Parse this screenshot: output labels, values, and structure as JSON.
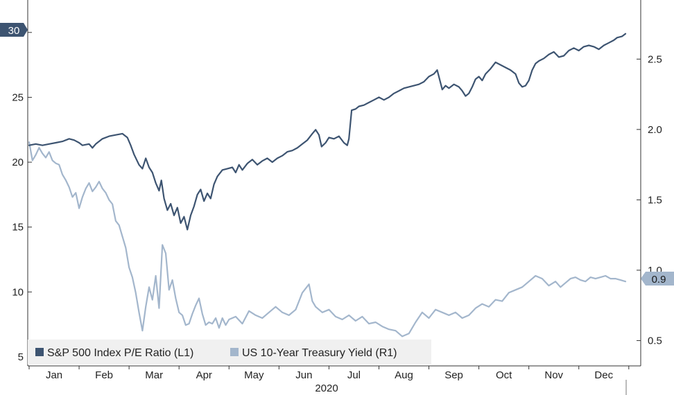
{
  "chart_data": {
    "type": "line",
    "xlabel": "2020",
    "months": [
      "Jan",
      "Feb",
      "Mar",
      "Apr",
      "May",
      "Jun",
      "Jul",
      "Aug",
      "Sep",
      "Oct",
      "Nov",
      "Dec"
    ],
    "left_axis": {
      "ticks": [
        5,
        10,
        15,
        20,
        25,
        30
      ],
      "range": [
        4.3,
        32.5
      ]
    },
    "right_axis": {
      "ticks": [
        0.5,
        1.0,
        1.5,
        2.0,
        2.5
      ],
      "tick_labels": [
        "0.5",
        "1.0",
        "1.5",
        "2.0",
        "2.5"
      ],
      "range": [
        0.32,
        2.92
      ]
    },
    "legend_position": "bottom-left",
    "grid": false,
    "series": [
      {
        "name": "S&P 500 Index P/E Ratio (L1)",
        "axis": "left",
        "color": "#3d5471",
        "last_value_label": "30",
        "points": [
          [
            0.0,
            21.3
          ],
          [
            0.2,
            21.4
          ],
          [
            0.4,
            21.3
          ],
          [
            0.6,
            21.4
          ],
          [
            0.8,
            21.5
          ],
          [
            1.0,
            21.6
          ],
          [
            1.2,
            21.8
          ],
          [
            1.35,
            21.7
          ],
          [
            1.5,
            21.5
          ],
          [
            1.6,
            21.3
          ],
          [
            1.8,
            21.4
          ],
          [
            1.9,
            21.1
          ],
          [
            2.0,
            21.4
          ],
          [
            2.2,
            21.8
          ],
          [
            2.4,
            22.0
          ],
          [
            2.6,
            22.1
          ],
          [
            2.8,
            22.2
          ],
          [
            2.95,
            21.9
          ],
          [
            3.05,
            21.3
          ],
          [
            3.15,
            20.6
          ],
          [
            3.3,
            19.8
          ],
          [
            3.4,
            19.5
          ],
          [
            3.5,
            20.3
          ],
          [
            3.6,
            19.6
          ],
          [
            3.7,
            19.2
          ],
          [
            3.8,
            18.4
          ],
          [
            3.9,
            17.8
          ],
          [
            3.97,
            18.6
          ],
          [
            4.05,
            17.2
          ],
          [
            4.15,
            16.3
          ],
          [
            4.25,
            16.8
          ],
          [
            4.35,
            15.9
          ],
          [
            4.45,
            16.5
          ],
          [
            4.55,
            15.3
          ],
          [
            4.65,
            15.8
          ],
          [
            4.75,
            14.8
          ],
          [
            4.85,
            15.9
          ],
          [
            4.95,
            16.6
          ],
          [
            5.05,
            17.5
          ],
          [
            5.15,
            17.9
          ],
          [
            5.25,
            17.0
          ],
          [
            5.35,
            17.6
          ],
          [
            5.45,
            17.2
          ],
          [
            5.55,
            18.3
          ],
          [
            5.65,
            18.9
          ],
          [
            5.8,
            19.4
          ],
          [
            5.95,
            19.5
          ],
          [
            6.1,
            19.6
          ],
          [
            6.2,
            19.2
          ],
          [
            6.3,
            19.8
          ],
          [
            6.4,
            19.4
          ],
          [
            6.55,
            19.9
          ],
          [
            6.7,
            20.2
          ],
          [
            6.85,
            19.8
          ],
          [
            7.0,
            20.1
          ],
          [
            7.15,
            20.3
          ],
          [
            7.3,
            20.0
          ],
          [
            7.45,
            20.3
          ],
          [
            7.6,
            20.5
          ],
          [
            7.75,
            20.8
          ],
          [
            7.9,
            20.9
          ],
          [
            8.05,
            21.1
          ],
          [
            8.2,
            21.4
          ],
          [
            8.35,
            21.7
          ],
          [
            8.5,
            22.2
          ],
          [
            8.6,
            22.5
          ],
          [
            8.7,
            22.1
          ],
          [
            8.78,
            21.2
          ],
          [
            8.9,
            21.5
          ],
          [
            9.0,
            21.9
          ],
          [
            9.15,
            21.8
          ],
          [
            9.3,
            22.0
          ],
          [
            9.45,
            21.5
          ],
          [
            9.55,
            21.3
          ],
          [
            9.6,
            21.8
          ],
          [
            9.68,
            24.0
          ],
          [
            9.8,
            24.1
          ],
          [
            9.9,
            24.3
          ],
          [
            10.05,
            24.4
          ],
          [
            10.2,
            24.6
          ],
          [
            10.35,
            24.8
          ],
          [
            10.5,
            25.0
          ],
          [
            10.65,
            24.8
          ],
          [
            10.8,
            25.0
          ],
          [
            10.95,
            25.3
          ],
          [
            11.1,
            25.5
          ],
          [
            11.25,
            25.7
          ],
          [
            11.4,
            25.8
          ],
          [
            11.55,
            25.9
          ],
          [
            11.7,
            26.0
          ],
          [
            11.85,
            26.2
          ],
          [
            12.0,
            26.6
          ],
          [
            12.15,
            26.8
          ],
          [
            12.25,
            27.1
          ],
          [
            12.32,
            26.4
          ],
          [
            12.4,
            25.6
          ],
          [
            12.5,
            25.9
          ],
          [
            12.6,
            25.7
          ],
          [
            12.75,
            26.0
          ],
          [
            12.9,
            25.8
          ],
          [
            13.0,
            25.5
          ],
          [
            13.1,
            25.1
          ],
          [
            13.2,
            25.3
          ],
          [
            13.3,
            25.8
          ],
          [
            13.4,
            26.4
          ],
          [
            13.5,
            26.6
          ],
          [
            13.6,
            26.3
          ],
          [
            13.7,
            26.8
          ],
          [
            13.85,
            27.2
          ],
          [
            14.0,
            27.7
          ],
          [
            14.15,
            27.5
          ],
          [
            14.3,
            27.3
          ],
          [
            14.45,
            27.1
          ],
          [
            14.6,
            26.8
          ],
          [
            14.7,
            26.1
          ],
          [
            14.8,
            25.8
          ],
          [
            14.9,
            25.9
          ],
          [
            15.0,
            26.3
          ],
          [
            15.1,
            27.1
          ],
          [
            15.2,
            27.6
          ],
          [
            15.3,
            27.8
          ],
          [
            15.45,
            28.0
          ],
          [
            15.6,
            28.3
          ],
          [
            15.75,
            28.5
          ],
          [
            15.9,
            28.1
          ],
          [
            16.05,
            28.2
          ],
          [
            16.2,
            28.6
          ],
          [
            16.35,
            28.8
          ],
          [
            16.5,
            28.6
          ],
          [
            16.65,
            28.9
          ],
          [
            16.8,
            29.0
          ],
          [
            16.95,
            28.9
          ],
          [
            17.1,
            28.7
          ],
          [
            17.25,
            29.0
          ],
          [
            17.4,
            29.2
          ],
          [
            17.55,
            29.4
          ],
          [
            17.65,
            29.6
          ],
          [
            17.8,
            29.7
          ],
          [
            17.9,
            29.9
          ]
        ]
      },
      {
        "name": "US 10-Year Treasury Yield (R1)",
        "axis": "right",
        "color": "#a3b6cc",
        "last_value_label": "0.9",
        "points": [
          [
            0.0,
            1.91
          ],
          [
            0.1,
            1.78
          ],
          [
            0.2,
            1.82
          ],
          [
            0.3,
            1.87
          ],
          [
            0.4,
            1.83
          ],
          [
            0.5,
            1.8
          ],
          [
            0.6,
            1.84
          ],
          [
            0.7,
            1.78
          ],
          [
            0.8,
            1.76
          ],
          [
            0.9,
            1.75
          ],
          [
            1.0,
            1.68
          ],
          [
            1.1,
            1.64
          ],
          [
            1.2,
            1.59
          ],
          [
            1.3,
            1.52
          ],
          [
            1.4,
            1.55
          ],
          [
            1.5,
            1.44
          ],
          [
            1.6,
            1.52
          ],
          [
            1.7,
            1.58
          ],
          [
            1.8,
            1.62
          ],
          [
            1.9,
            1.56
          ],
          [
            2.0,
            1.59
          ],
          [
            2.1,
            1.63
          ],
          [
            2.2,
            1.58
          ],
          [
            2.3,
            1.55
          ],
          [
            2.4,
            1.5
          ],
          [
            2.5,
            1.47
          ],
          [
            2.6,
            1.35
          ],
          [
            2.7,
            1.32
          ],
          [
            2.8,
            1.24
          ],
          [
            2.9,
            1.16
          ],
          [
            3.0,
            1.02
          ],
          [
            3.1,
            0.95
          ],
          [
            3.2,
            0.84
          ],
          [
            3.3,
            0.7
          ],
          [
            3.4,
            0.57
          ],
          [
            3.5,
            0.74
          ],
          [
            3.6,
            0.88
          ],
          [
            3.7,
            0.79
          ],
          [
            3.8,
            0.96
          ],
          [
            3.9,
            0.73
          ],
          [
            4.0,
            1.18
          ],
          [
            4.1,
            1.12
          ],
          [
            4.2,
            0.86
          ],
          [
            4.3,
            0.93
          ],
          [
            4.4,
            0.8
          ],
          [
            4.5,
            0.7
          ],
          [
            4.6,
            0.68
          ],
          [
            4.7,
            0.61
          ],
          [
            4.8,
            0.62
          ],
          [
            4.9,
            0.69
          ],
          [
            5.0,
            0.75
          ],
          [
            5.1,
            0.8
          ],
          [
            5.2,
            0.69
          ],
          [
            5.3,
            0.61
          ],
          [
            5.4,
            0.63
          ],
          [
            5.5,
            0.62
          ],
          [
            5.6,
            0.66
          ],
          [
            5.7,
            0.59
          ],
          [
            5.8,
            0.66
          ],
          [
            5.9,
            0.61
          ],
          [
            6.0,
            0.65
          ],
          [
            6.2,
            0.67
          ],
          [
            6.4,
            0.62
          ],
          [
            6.6,
            0.71
          ],
          [
            6.8,
            0.68
          ],
          [
            7.0,
            0.66
          ],
          [
            7.2,
            0.7
          ],
          [
            7.4,
            0.74
          ],
          [
            7.6,
            0.7
          ],
          [
            7.8,
            0.68
          ],
          [
            8.0,
            0.72
          ],
          [
            8.2,
            0.84
          ],
          [
            8.4,
            0.9
          ],
          [
            8.5,
            0.78
          ],
          [
            8.6,
            0.74
          ],
          [
            8.8,
            0.7
          ],
          [
            9.0,
            0.72
          ],
          [
            9.2,
            0.67
          ],
          [
            9.4,
            0.65
          ],
          [
            9.6,
            0.68
          ],
          [
            9.8,
            0.64
          ],
          [
            10.0,
            0.67
          ],
          [
            10.2,
            0.62
          ],
          [
            10.4,
            0.63
          ],
          [
            10.6,
            0.6
          ],
          [
            10.8,
            0.58
          ],
          [
            11.0,
            0.57
          ],
          [
            11.2,
            0.53
          ],
          [
            11.4,
            0.55
          ],
          [
            11.6,
            0.63
          ],
          [
            11.8,
            0.7
          ],
          [
            12.0,
            0.66
          ],
          [
            12.2,
            0.72
          ],
          [
            12.4,
            0.7
          ],
          [
            12.6,
            0.68
          ],
          [
            12.8,
            0.7
          ],
          [
            13.0,
            0.66
          ],
          [
            13.2,
            0.68
          ],
          [
            13.4,
            0.73
          ],
          [
            13.6,
            0.76
          ],
          [
            13.8,
            0.74
          ],
          [
            14.0,
            0.79
          ],
          [
            14.2,
            0.78
          ],
          [
            14.4,
            0.84
          ],
          [
            14.6,
            0.86
          ],
          [
            14.8,
            0.88
          ],
          [
            15.0,
            0.92
          ],
          [
            15.2,
            0.96
          ],
          [
            15.4,
            0.94
          ],
          [
            15.6,
            0.89
          ],
          [
            15.8,
            0.92
          ],
          [
            15.95,
            0.88
          ],
          [
            16.1,
            0.91
          ],
          [
            16.25,
            0.94
          ],
          [
            16.4,
            0.95
          ],
          [
            16.55,
            0.93
          ],
          [
            16.7,
            0.92
          ],
          [
            16.85,
            0.95
          ],
          [
            17.0,
            0.94
          ],
          [
            17.15,
            0.95
          ],
          [
            17.3,
            0.96
          ],
          [
            17.45,
            0.94
          ],
          [
            17.6,
            0.94
          ],
          [
            17.75,
            0.93
          ],
          [
            17.9,
            0.92
          ]
        ]
      }
    ]
  }
}
